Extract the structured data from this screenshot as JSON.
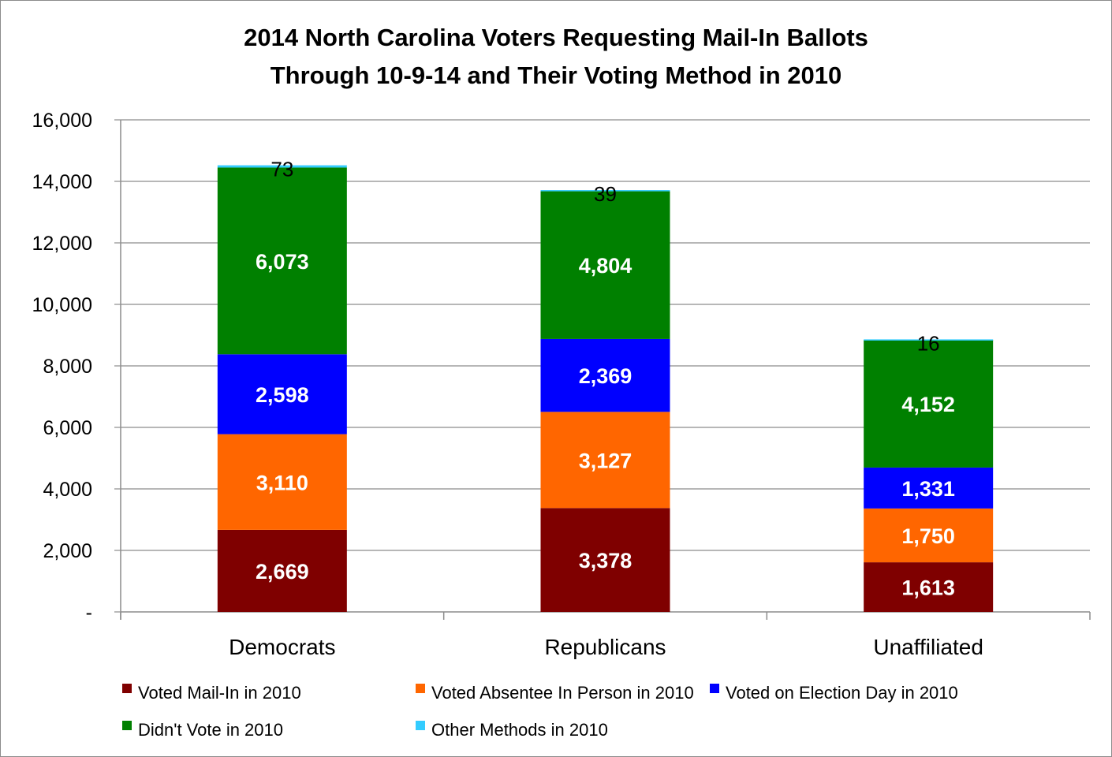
{
  "chart_data": {
    "type": "bar",
    "stacked": true,
    "title_line1": "2014 North Carolina Voters Requesting Mail-In Ballots",
    "title_line2": "Through 10-9-14 and Their Voting Method in 2010",
    "categories": [
      "Democrats",
      "Republicans",
      "Unaffiliated"
    ],
    "series": [
      {
        "name": "Voted Mail-In in 2010",
        "color": "#7f0000",
        "values": [
          2669,
          3378,
          1613
        ],
        "labels": [
          "2,669",
          "3,378",
          "1,613"
        ]
      },
      {
        "name": "Voted Absentee In Person in 2010",
        "color": "#ff6600",
        "values": [
          3110,
          3127,
          1750
        ],
        "labels": [
          "3,110",
          "3,127",
          "1,750"
        ]
      },
      {
        "name": "Voted on Election Day in 2010",
        "color": "#0000ff",
        "values": [
          2598,
          2369,
          1331
        ],
        "labels": [
          "2,598",
          "2,369",
          "1,331"
        ]
      },
      {
        "name": "Didn't Vote in 2010",
        "color": "#008000",
        "values": [
          6073,
          4804,
          4152
        ],
        "labels": [
          "6,073",
          "4,804",
          "4,152"
        ]
      },
      {
        "name": "Other Methods in 2010",
        "color": "#33ccff",
        "values": [
          73,
          39,
          16
        ],
        "labels": [
          "73",
          "39",
          "16"
        ]
      }
    ],
    "ylim": [
      0,
      16000
    ],
    "yticks": [
      0,
      2000,
      4000,
      6000,
      8000,
      10000,
      12000,
      14000,
      16000
    ],
    "ytick_labels": [
      "-",
      "2,000",
      "4,000",
      "6,000",
      "8,000",
      "10,000",
      "12,000",
      "14,000",
      "16,000"
    ],
    "grid": true,
    "legend_position": "bottom"
  }
}
